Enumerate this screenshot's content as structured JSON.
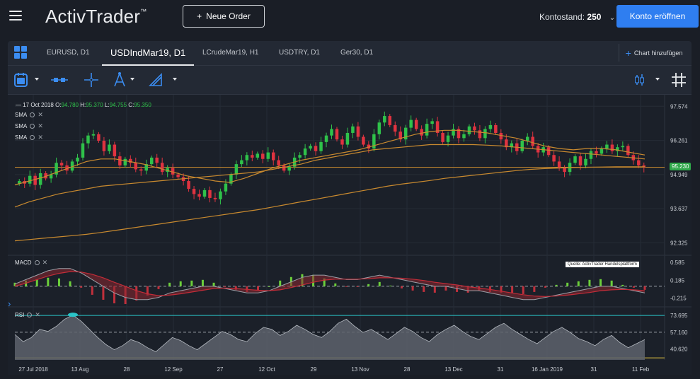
{
  "header": {
    "brand": "ActivTrader",
    "brand_tm": "™",
    "new_order_label": "Neue Order",
    "balance_label": "Kontostand:",
    "balance_value": "250",
    "open_account_label": "Konto eröffnen"
  },
  "tabs": [
    {
      "label": "EURUSD, D1",
      "active": false
    },
    {
      "label": "USDIndMar19, D1",
      "active": true
    },
    {
      "label": "LCrudeMar19, H1",
      "active": false
    },
    {
      "label": "USDTRY, D1",
      "active": false
    },
    {
      "label": "Ger30, D1",
      "active": false
    }
  ],
  "add_chart_label": "Chart hinzufügen",
  "toolbar": {
    "icons": [
      "calendar-icon",
      "bar-type-icon",
      "crosshair-icon",
      "drawing-compass-icon",
      "pencil-icon",
      "indicator-icon",
      "grid-icon"
    ]
  },
  "ohlc": {
    "date": "17 Oct 2018",
    "o_label": "O:",
    "o": "94.780",
    "h_label": "H:",
    "h": "95.370",
    "l_label": "L:",
    "l": "94.755",
    "c_label": "C:",
    "c": "95.350"
  },
  "indicators": {
    "main": [
      "SMA",
      "SMA",
      "SMA"
    ],
    "macd": "MACD",
    "rsi": "RSI"
  },
  "source_note": "Quelle: ActivTrader Handelsplattform",
  "price_badge": "95.230",
  "colors": {
    "up": "#2fc24a",
    "down": "#e03340",
    "sma_line": "#c98a2f",
    "accent": "#2f7ef0",
    "rsi_top": "#2bc4c8",
    "rsi_bottom": "#e0c040"
  },
  "chart_data": {
    "type": "candlestick",
    "symbol": "USDIndMar19",
    "timeframe": "D1",
    "price_axis_ticks": [
      "97.574",
      "96.261",
      "94.949",
      "93.637",
      "92.325"
    ],
    "macd_axis_ticks": [
      "0.585",
      "0.185",
      "-0.215"
    ],
    "rsi_axis_ticks": [
      "73.695",
      "57.160",
      "40.620"
    ],
    "x_tick_labels": [
      "27 Jul 2018",
      "13 Aug",
      "28",
      "12 Sep",
      "27",
      "12 Oct",
      "29",
      "13 Nov",
      "28",
      "13 Dec",
      "31",
      "16 Jan 2019",
      "31",
      "11 Feb"
    ],
    "y_range": [
      91.9,
      97.8
    ],
    "current_price": 95.23,
    "closes": [
      94.7,
      94.6,
      94.9,
      94.55,
      95.0,
      94.8,
      94.95,
      95.4,
      95.3,
      95.1,
      95.45,
      95.6,
      96.15,
      96.45,
      96.5,
      96.25,
      95.85,
      96.1,
      95.65,
      95.3,
      95.55,
      95.4,
      95.15,
      95.1,
      95.35,
      95.6,
      95.4,
      95.05,
      95.2,
      94.95,
      94.85,
      94.7,
      94.4,
      94.2,
      94.1,
      94.35,
      94.05,
      94.0,
      94.3,
      94.6,
      94.95,
      95.35,
      95.5,
      95.7,
      95.6,
      95.75,
      95.55,
      95.8,
      95.5,
      95.3,
      95.1,
      95.25,
      95.6,
      95.7,
      95.95,
      96.05,
      95.85,
      96.2,
      96.45,
      96.7,
      96.3,
      96.1,
      96.55,
      96.8,
      96.4,
      96.1,
      95.95,
      96.5,
      96.95,
      97.2,
      96.85,
      96.6,
      96.3,
      96.75,
      97.05,
      96.7,
      96.45,
      96.9,
      97.0,
      96.55,
      96.2,
      96.45,
      96.7,
      96.35,
      96.5,
      96.8,
      96.65,
      96.35,
      96.7,
      96.85,
      96.55,
      96.3,
      96.0,
      96.15,
      95.85,
      96.25,
      96.4,
      96.05,
      95.8,
      96.0,
      95.7,
      95.45,
      95.2,
      95.05,
      95.4,
      95.65,
      95.3,
      95.55,
      95.85,
      95.75,
      95.95,
      96.1,
      95.85,
      96.0,
      96.05,
      95.7,
      95.5,
      95.3,
      95.23
    ],
    "sma_fast": [
      94.55,
      94.7,
      94.85,
      95.05,
      95.25,
      95.45,
      95.55,
      95.55,
      95.45,
      95.35,
      95.2,
      95.05,
      94.9,
      94.8,
      94.7,
      94.65,
      94.8,
      95.0,
      95.2,
      95.35,
      95.5,
      95.6,
      95.7,
      95.8,
      95.9,
      96.05,
      96.2,
      96.35,
      96.5,
      96.6,
      96.65,
      96.65,
      96.6,
      96.55,
      96.45,
      96.35,
      96.2,
      96.05,
      95.95,
      95.9,
      95.95,
      95.95,
      95.9,
      95.8,
      95.7
    ],
    "sma_mid": [
      93.7,
      93.9,
      94.05,
      94.2,
      94.3,
      94.4,
      94.5,
      94.55,
      94.6,
      94.65,
      94.7,
      94.75,
      94.8,
      94.85,
      94.9,
      94.95,
      95.0,
      95.05,
      95.15,
      95.25,
      95.35,
      95.5,
      95.6,
      95.7,
      95.8,
      95.9,
      95.95,
      96.0,
      96.05,
      96.1,
      96.1,
      96.1,
      96.1,
      96.08,
      96.05,
      96.0,
      95.95,
      95.9,
      95.85,
      95.8,
      95.75,
      95.7,
      95.65,
      95.6,
      95.55
    ],
    "sma_slow": [
      92.4,
      92.45,
      92.5,
      92.55,
      92.6,
      92.65,
      92.72,
      92.8,
      92.88,
      92.96,
      93.04,
      93.12,
      93.2,
      93.28,
      93.36,
      93.44,
      93.52,
      93.6,
      93.7,
      93.8,
      93.9,
      94.0,
      94.1,
      94.2,
      94.3,
      94.4,
      94.5,
      94.58,
      94.65,
      94.72,
      94.8,
      94.86,
      94.92,
      94.98,
      95.04,
      95.1,
      95.15,
      95.18,
      95.2,
      95.22,
      95.23,
      95.24,
      95.25,
      95.25,
      95.25
    ],
    "macd": [
      0.1,
      0.2,
      0.3,
      0.4,
      0.45,
      0.45,
      0.35,
      0.2,
      0.05,
      -0.1,
      -0.2,
      -0.25,
      -0.25,
      -0.2,
      -0.1,
      -0.05,
      0.0,
      0.05,
      0.05,
      0.0,
      -0.05,
      -0.1,
      -0.1,
      -0.05,
      0.05,
      0.15,
      0.25,
      0.3,
      0.3,
      0.25,
      0.2,
      0.2,
      0.25,
      0.3,
      0.25,
      0.2,
      0.15,
      0.1,
      0.05,
      0.05,
      0.0,
      -0.05,
      -0.05,
      -0.1,
      -0.15,
      -0.2,
      -0.25,
      -0.25,
      -0.2,
      -0.15,
      -0.1,
      -0.05,
      0.0,
      0.05,
      0.05,
      0.0,
      -0.05,
      -0.1
    ],
    "macd_signal": [
      0.05,
      0.12,
      0.2,
      0.28,
      0.34,
      0.38,
      0.37,
      0.32,
      0.24,
      0.14,
      0.05,
      -0.05,
      -0.12,
      -0.16,
      -0.15,
      -0.12,
      -0.08,
      -0.04,
      0.0,
      0.01,
      0.0,
      -0.02,
      -0.04,
      -0.05,
      -0.03,
      0.02,
      0.08,
      0.14,
      0.19,
      0.21,
      0.21,
      0.21,
      0.22,
      0.24,
      0.24,
      0.23,
      0.21,
      0.18,
      0.14,
      0.11,
      0.08,
      0.04,
      0.01,
      -0.02,
      -0.06,
      -0.1,
      -0.14,
      -0.17,
      -0.18,
      -0.17,
      -0.15,
      -0.12,
      -0.09,
      -0.05,
      -0.03,
      -0.02,
      -0.03,
      -0.05
    ],
    "rsi": [
      55,
      48,
      52,
      60,
      58,
      63,
      70,
      74,
      68,
      60,
      52,
      45,
      40,
      44,
      50,
      47,
      42,
      38,
      45,
      52,
      49,
      44,
      40,
      46,
      52,
      58,
      55,
      50,
      48,
      56,
      62,
      60,
      54,
      58,
      64,
      60,
      55,
      52,
      58,
      66,
      70,
      63,
      57,
      60,
      55,
      50,
      56,
      62,
      58,
      52,
      48,
      55,
      60,
      64,
      58,
      53,
      50,
      56,
      62,
      66,
      60,
      55,
      50,
      46,
      52,
      58,
      62,
      57,
      51,
      48,
      44,
      50,
      54,
      47,
      42,
      46,
      50
    ]
  }
}
